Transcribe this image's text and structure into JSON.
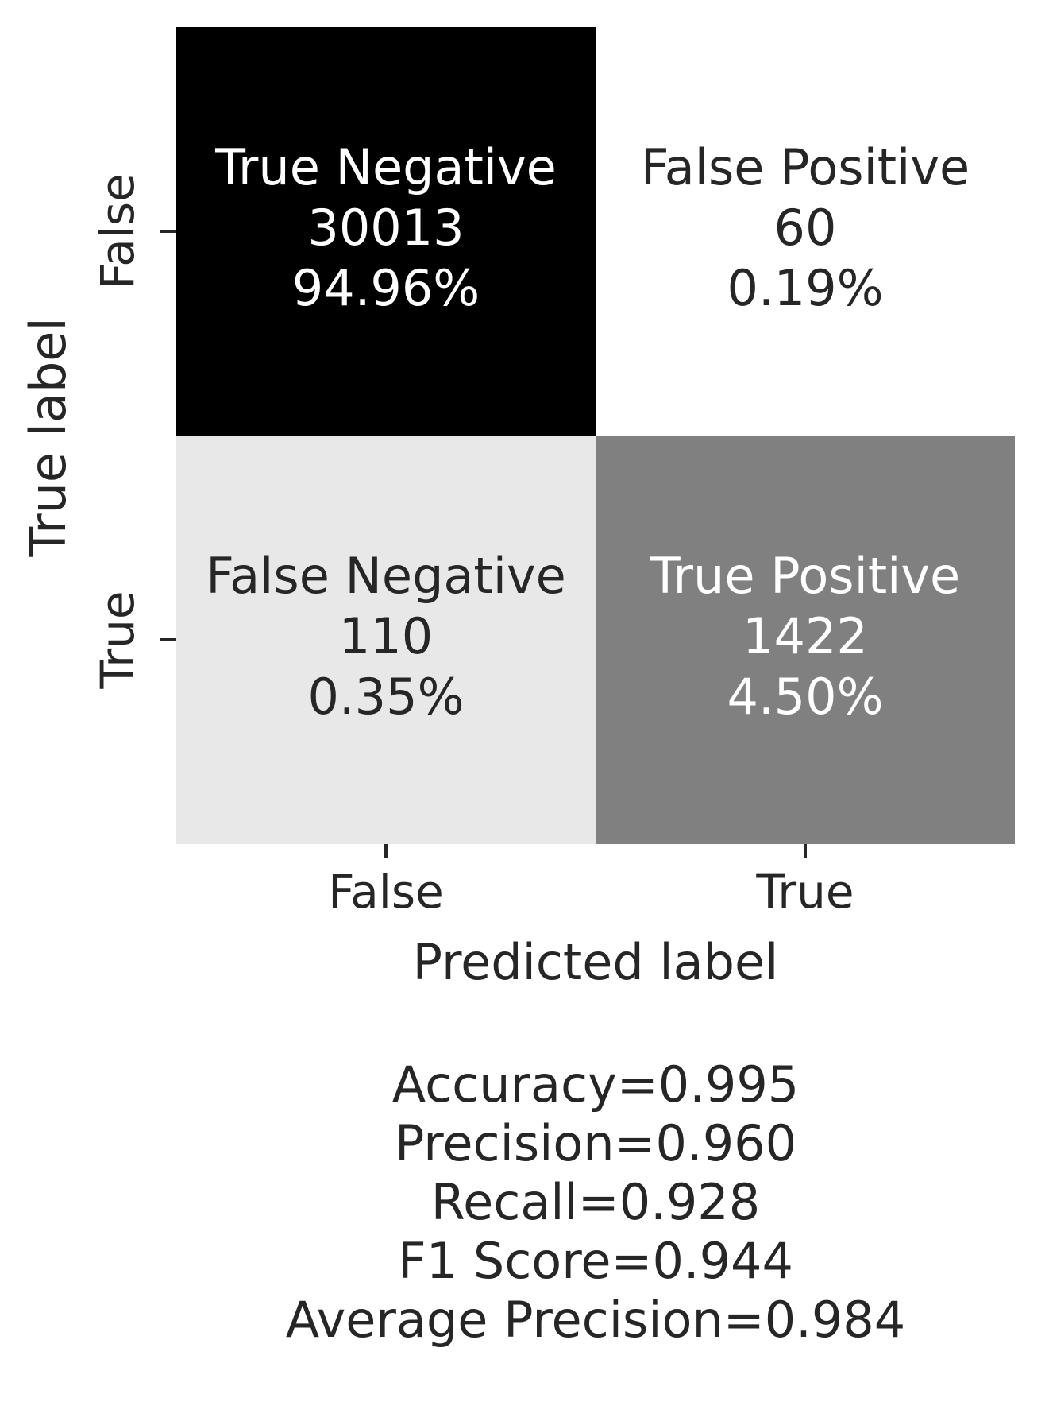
{
  "chart_data": {
    "type": "heatmap",
    "title": "",
    "xlabel": "Predicted label",
    "ylabel": "True label",
    "x_categories": [
      "False",
      "True"
    ],
    "y_categories": [
      "False",
      "True"
    ],
    "colormap": "binary",
    "colors": {
      "text_dark": "#262626",
      "text_light": "#ffffff",
      "tick": "#262626"
    },
    "cells": [
      {
        "row": 0,
        "col": 0,
        "name": "True Negative",
        "count": 30013,
        "count_label": "30013",
        "percent_label": "94.96%"
      },
      {
        "row": 0,
        "col": 1,
        "name": "False Positive",
        "count": 60,
        "count_label": "60",
        "percent_label": "0.19%"
      },
      {
        "row": 1,
        "col": 0,
        "name": "False Negative",
        "count": 110,
        "count_label": "110",
        "percent_label": "0.35%"
      },
      {
        "row": 1,
        "col": 1,
        "name": "True Positive",
        "count": 1422,
        "count_label": "1422",
        "percent_label": "4.50%"
      }
    ],
    "metrics": [
      "Accuracy=0.995",
      "Precision=0.960",
      "Recall=0.928",
      "F1 Score=0.944",
      "Average Precision=0.984"
    ]
  }
}
